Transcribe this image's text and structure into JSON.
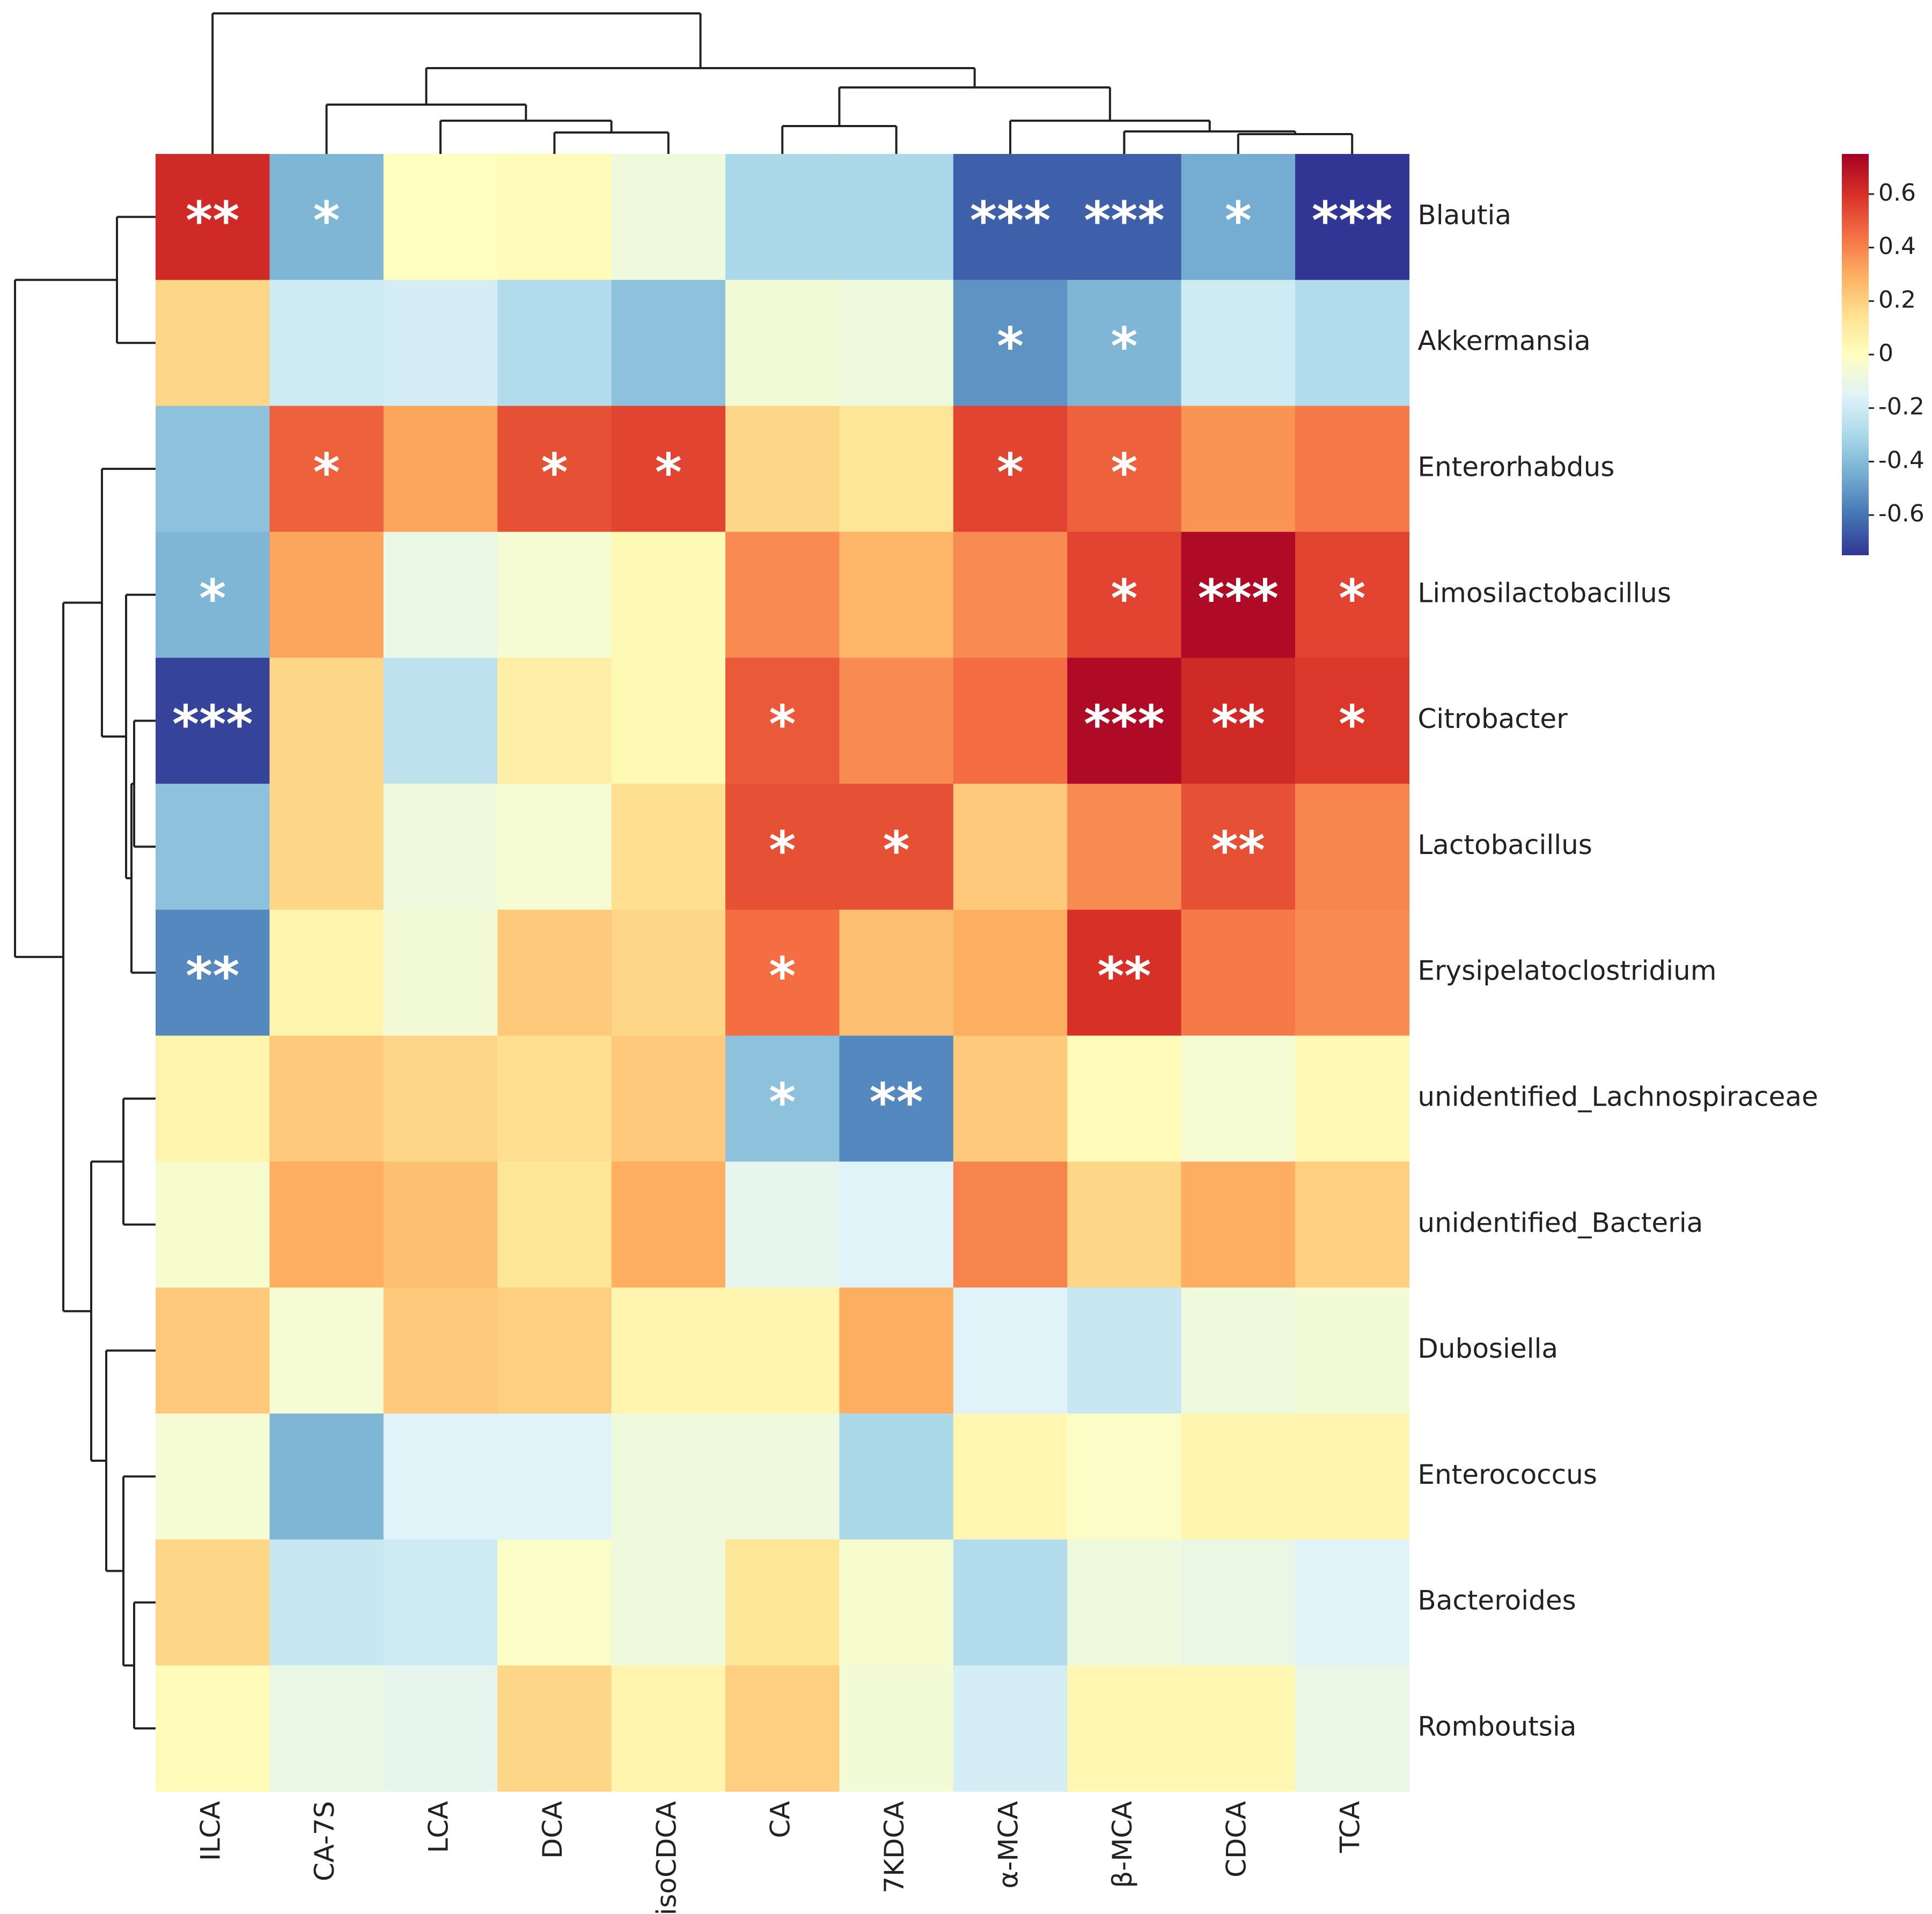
{
  "chart_data": {
    "type": "heatmap",
    "title": "",
    "columns": [
      "ILCA",
      "CA-7S",
      "LCA",
      "DCA",
      "isoCDCA",
      "CA",
      "7KDCA",
      "α-MCA",
      "β-MCA",
      "CDCA",
      "TCA"
    ],
    "rows": [
      "Blautia",
      "Akkermansia",
      "Enterorhabdus",
      "Limosilactobacillus",
      "Citrobacter",
      "Lactobacillus",
      "Erysipelatoclostridium",
      "unidentified_Lachnospiraceae",
      "unidentified_Bacteria",
      "Dubosiella",
      "Enterococcus",
      "Bacteroides",
      "Romboutsia"
    ],
    "values": [
      [
        0.62,
        -0.42,
        0.0,
        0.02,
        -0.08,
        -0.3,
        -0.3,
        -0.65,
        -0.65,
        -0.45,
        -0.75
      ],
      [
        0.18,
        -0.2,
        -0.18,
        -0.28,
        -0.38,
        -0.06,
        -0.08,
        -0.52,
        -0.42,
        -0.2,
        -0.28
      ],
      [
        -0.38,
        0.48,
        0.32,
        0.52,
        0.55,
        0.18,
        0.12,
        0.55,
        0.48,
        0.36,
        0.42
      ],
      [
        -0.42,
        0.32,
        -0.1,
        -0.05,
        0.03,
        0.38,
        0.28,
        0.38,
        0.55,
        0.72,
        0.55
      ],
      [
        -0.72,
        0.18,
        -0.25,
        0.08,
        0.03,
        0.5,
        0.38,
        0.45,
        0.72,
        0.62,
        0.58
      ],
      [
        -0.38,
        0.18,
        -0.08,
        -0.05,
        0.15,
        0.52,
        0.52,
        0.22,
        0.38,
        0.52,
        0.4
      ],
      [
        -0.55,
        0.05,
        -0.06,
        0.22,
        0.18,
        0.45,
        0.25,
        0.3,
        0.6,
        0.42,
        0.38
      ],
      [
        0.05,
        0.22,
        0.18,
        0.15,
        0.22,
        -0.38,
        -0.55,
        0.22,
        0.02,
        -0.05,
        0.03
      ],
      [
        -0.04,
        0.3,
        0.25,
        0.12,
        0.3,
        -0.12,
        -0.15,
        0.4,
        0.18,
        0.3,
        0.2
      ],
      [
        0.22,
        -0.05,
        0.22,
        0.2,
        0.05,
        0.05,
        0.3,
        -0.15,
        -0.22,
        -0.08,
        -0.06
      ],
      [
        -0.05,
        -0.42,
        -0.15,
        -0.15,
        -0.08,
        -0.08,
        -0.3,
        0.04,
        -0.02,
        0.05,
        0.05
      ],
      [
        0.18,
        -0.22,
        -0.2,
        -0.02,
        -0.08,
        0.12,
        -0.04,
        -0.28,
        -0.08,
        -0.1,
        -0.15
      ],
      [
        0.02,
        -0.1,
        -0.12,
        0.18,
        0.05,
        0.2,
        -0.06,
        -0.18,
        0.04,
        0.04,
        -0.1
      ]
    ],
    "significance": [
      [
        "**",
        "*",
        "",
        "",
        "",
        "",
        "",
        "***",
        "***",
        "*",
        "***"
      ],
      [
        "",
        "",
        "",
        "",
        "",
        "",
        "",
        "*",
        "*",
        "",
        ""
      ],
      [
        "",
        "*",
        "",
        "*",
        "*",
        "",
        "",
        "*",
        "*",
        "",
        ""
      ],
      [
        "*",
        "",
        "",
        "",
        "",
        "",
        "",
        "",
        "*",
        "***",
        "*"
      ],
      [
        "***",
        "",
        "",
        "",
        "",
        "*",
        "",
        "",
        "***",
        "**",
        "*"
      ],
      [
        "",
        "",
        "",
        "",
        "",
        "*",
        "*",
        "",
        "",
        "**",
        ""
      ],
      [
        "**",
        "",
        "",
        "",
        "",
        "*",
        "",
        "",
        "**",
        "",
        ""
      ],
      [
        "",
        "",
        "",
        "",
        "",
        "*",
        "**",
        "",
        "",
        "",
        ""
      ],
      [
        "",
        "",
        "",
        "",
        "",
        "",
        "",
        "",
        "",
        "",
        ""
      ],
      [
        "",
        "",
        "",
        "",
        "",
        "",
        "",
        "",
        "",
        "",
        ""
      ],
      [
        "",
        "",
        "",
        "",
        "",
        "",
        "",
        "",
        "",
        "",
        ""
      ],
      [
        "",
        "",
        "",
        "",
        "",
        "",
        "",
        "",
        "",
        "",
        ""
      ],
      [
        "",
        "",
        "",
        "",
        "",
        "",
        "",
        "",
        "",
        "",
        ""
      ]
    ],
    "colorbar": {
      "range": [
        -0.75,
        0.75
      ],
      "ticks": [
        0.6,
        0.4,
        0.2,
        0,
        -0.2,
        -0.4,
        -0.6
      ],
      "tick_labels": [
        "0.6",
        "0.4",
        "0.2",
        "0",
        "-0.2",
        "-0.4",
        "-0.6"
      ],
      "colormap": "RdYlBu_r"
    },
    "colormap_stops": [
      "#313695",
      "#4575b4",
      "#74add1",
      "#abd9e9",
      "#e0f3f8",
      "#ffffbf",
      "#fee090",
      "#fdae61",
      "#f46d43",
      "#d73027",
      "#a50026"
    ],
    "row_dendrogram": true,
    "column_dendrogram": true
  }
}
